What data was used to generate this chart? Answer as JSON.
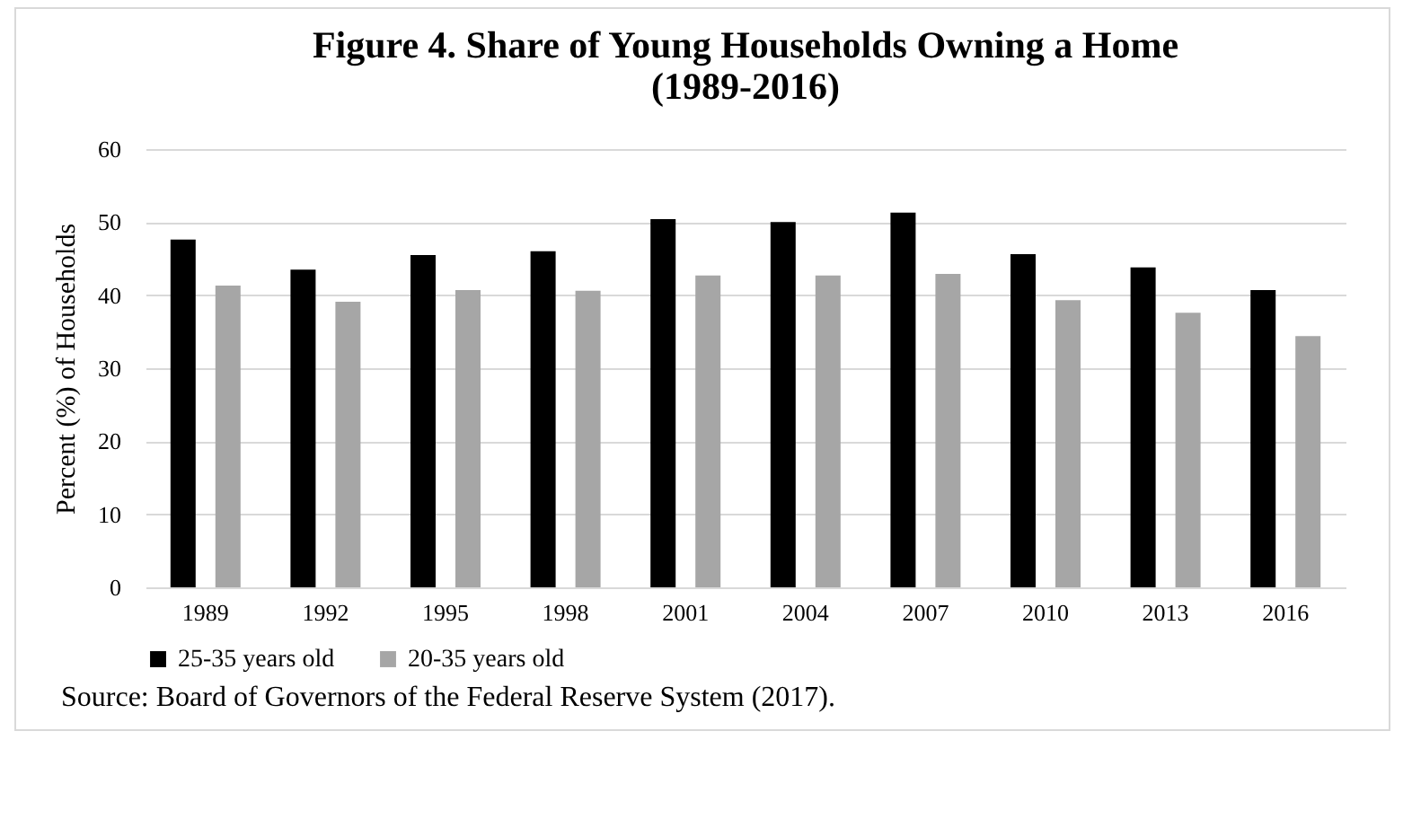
{
  "chart_data": {
    "type": "bar",
    "title": "Figure 4. Share of Young Households Owning a Home\n(1989-2016)",
    "ylabel": "Percent (%) of Households",
    "categories": [
      "1989",
      "1992",
      "1995",
      "1998",
      "2001",
      "2004",
      "2007",
      "2010",
      "2013",
      "2016"
    ],
    "series": [
      {
        "name": "25-35 years old",
        "color": "#000000",
        "values": [
          47.6,
          43.5,
          45.5,
          46.0,
          50.4,
          50.0,
          51.3,
          45.6,
          43.8,
          40.7
        ]
      },
      {
        "name": "20-35 years old",
        "color": "#a6a6a6",
        "values": [
          41.3,
          39.1,
          40.7,
          40.6,
          42.7,
          42.7,
          42.9,
          39.3,
          37.6,
          34.4
        ]
      }
    ],
    "ylim": [
      0,
      60
    ],
    "yticks": [
      0,
      10,
      20,
      30,
      40,
      50,
      60
    ],
    "grid": "y",
    "legend": "bottom",
    "annotations": [
      "Source: Board of Governors of the Federal Reserve System (2017)."
    ]
  }
}
